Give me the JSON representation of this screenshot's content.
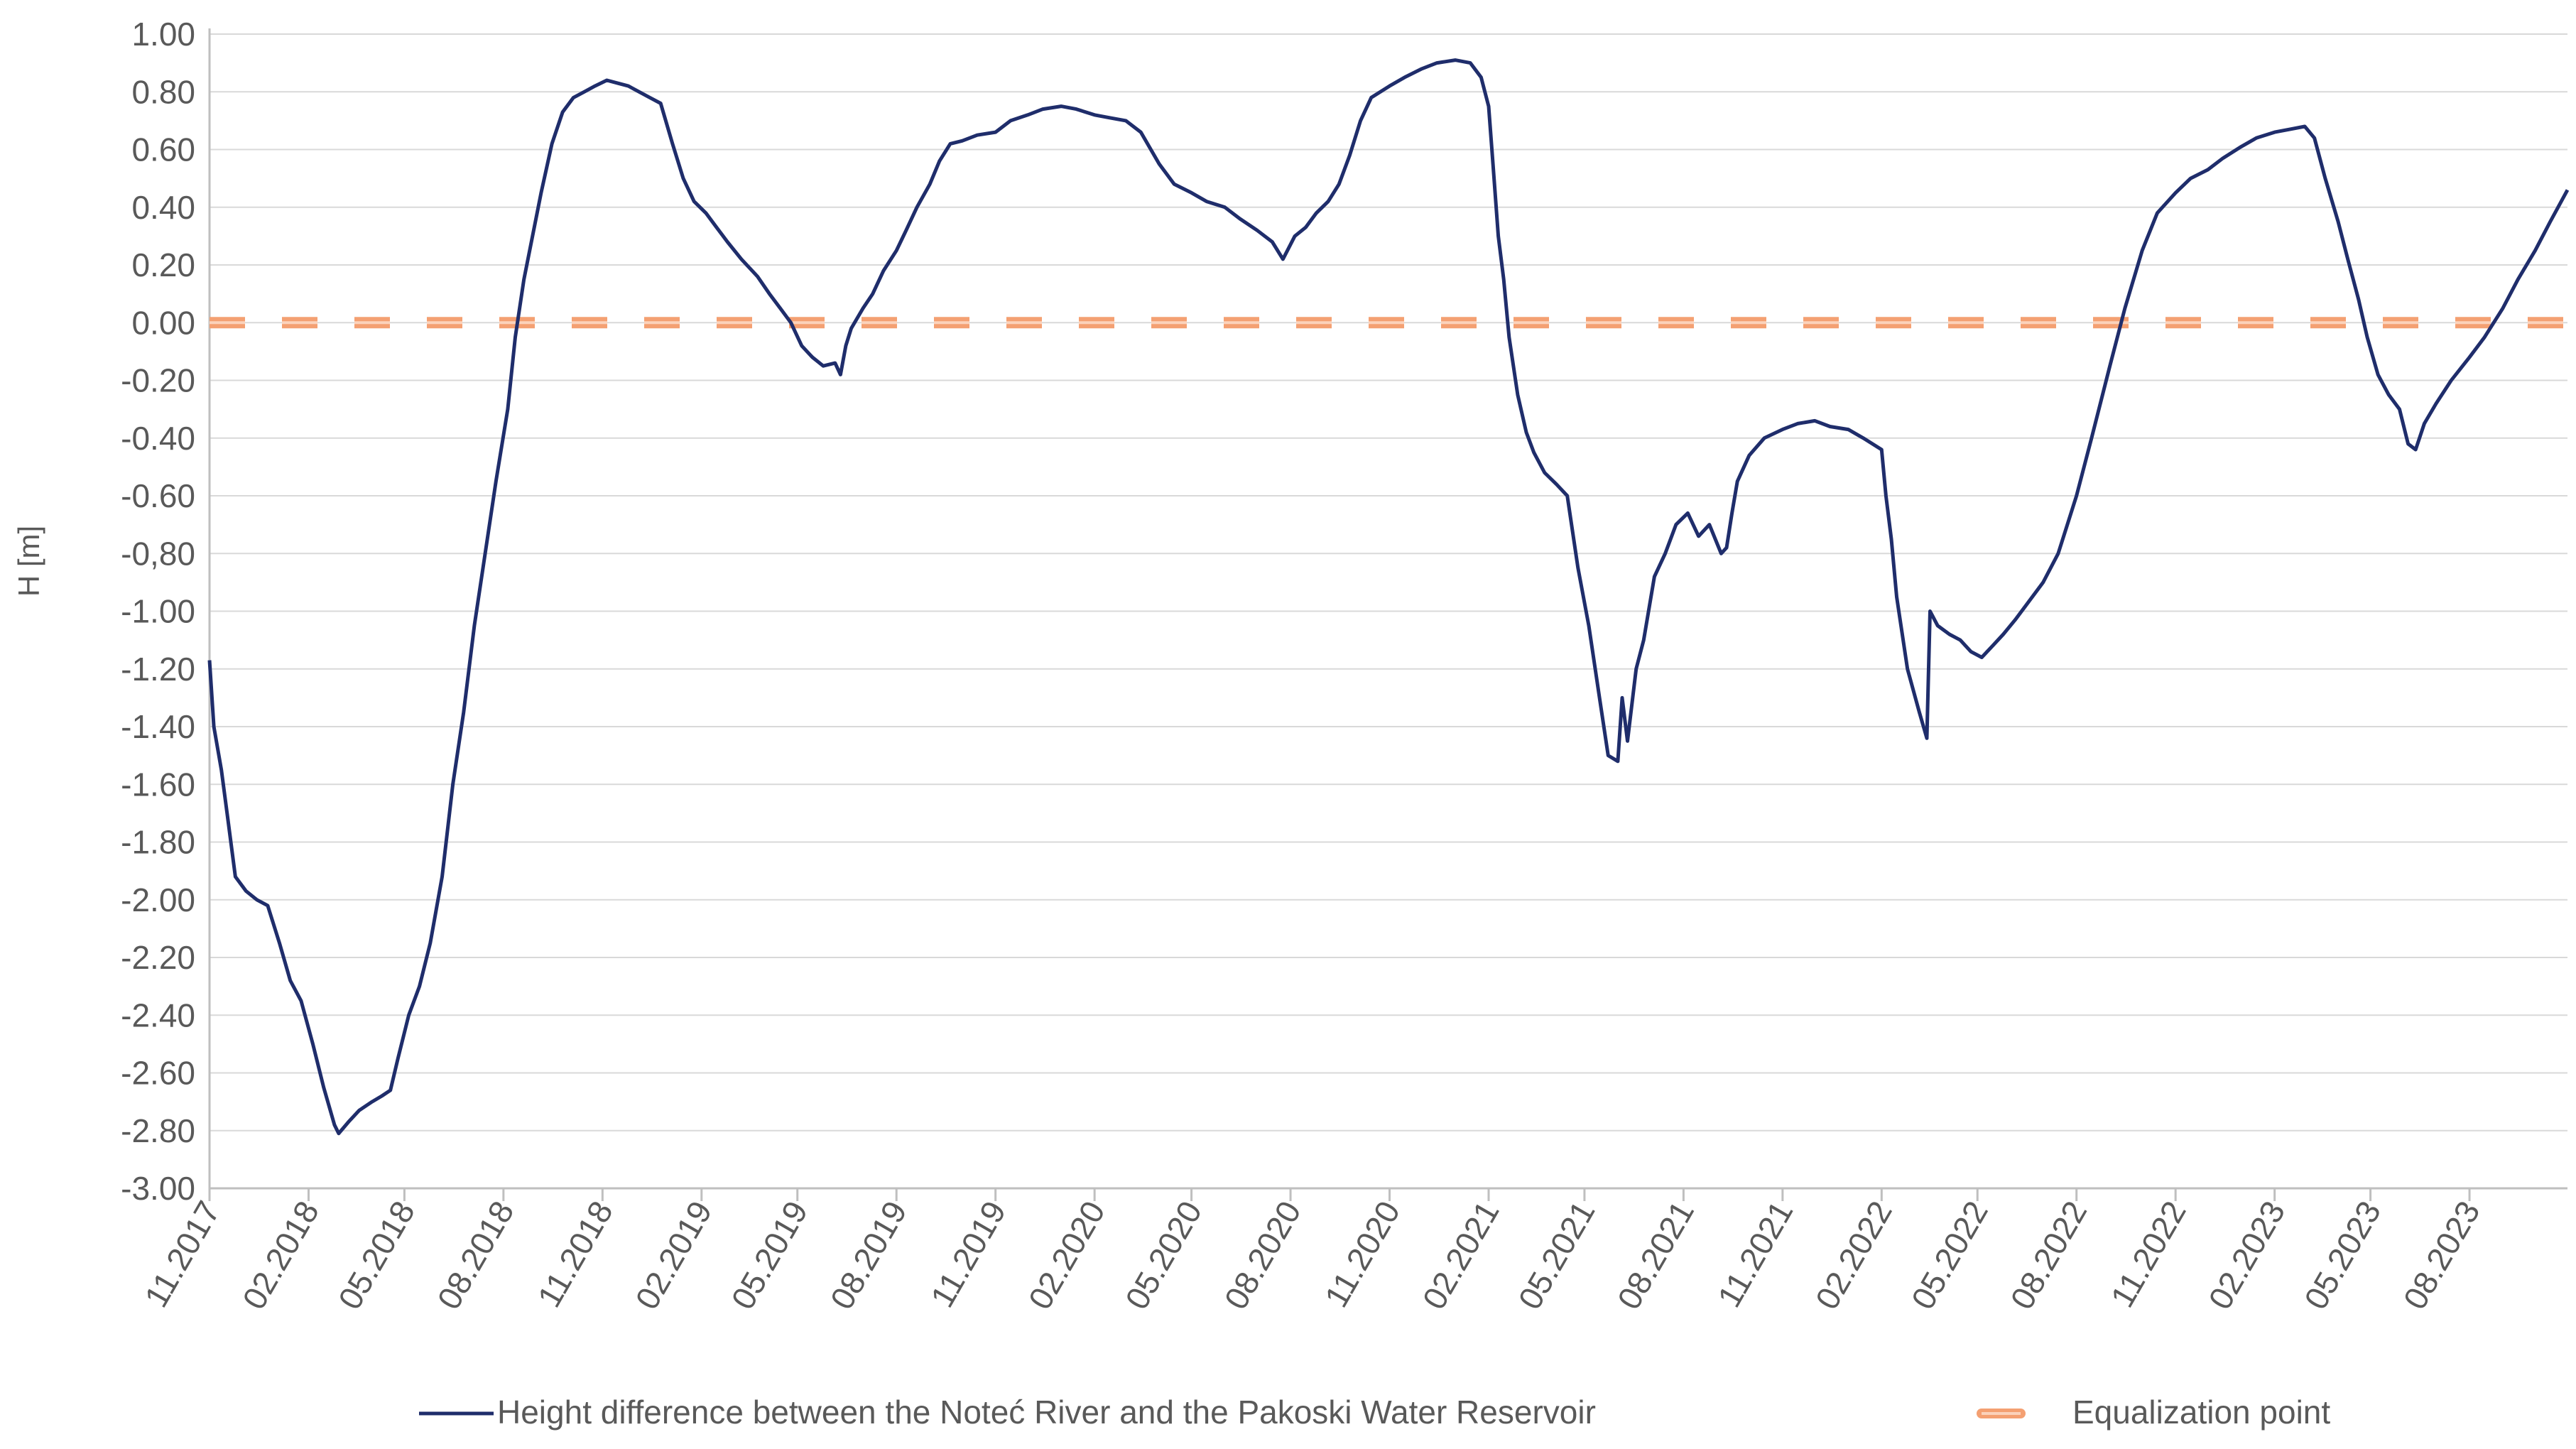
{
  "chart_data": {
    "type": "line",
    "title": "",
    "xlabel": "",
    "ylabel": "H [m]",
    "ylim": [
      -3.0,
      1.0
    ],
    "y_ticks": [
      "1.00",
      "0.80",
      "0.60",
      "0.40",
      "0.20",
      "0.00",
      "-0.20",
      "-0.40",
      "-0.60",
      "-0,80",
      "-1.00",
      "-1.20",
      "-1.40",
      "-1.60",
      "-1.80",
      "-2.00",
      "-2.20",
      "-2.40",
      "-2.60",
      "-2.80",
      "-3.00"
    ],
    "x_ticks": [
      "11.2017",
      "02.2018",
      "05.2018",
      "08.2018",
      "11.2018",
      "02.2019",
      "05.2019",
      "08.2019",
      "11.2019",
      "02.2020",
      "05.2020",
      "08.2020",
      "11.2020",
      "02.2021",
      "05.2021",
      "08.2021",
      "11.2021",
      "02.2022",
      "05.2022",
      "08.2022",
      "11.2022",
      "02.2023",
      "05.2023",
      "08.2023"
    ],
    "grid": true,
    "legend_position": "bottom",
    "series": [
      {
        "name": "Height difference between the Noteć River and the Pakoski Water Reservoir",
        "color": "#1f2d6b",
        "style": "solid",
        "points": [
          [
            "2017-11-01",
            -1.17
          ],
          [
            "2017-11-05",
            -1.4
          ],
          [
            "2017-11-12",
            -1.55
          ],
          [
            "2017-11-18",
            -1.72
          ],
          [
            "2017-11-25",
            -1.92
          ],
          [
            "2017-12-05",
            -1.97
          ],
          [
            "2017-12-15",
            -2.0
          ],
          [
            "2017-12-25",
            -2.02
          ],
          [
            "2018-01-05",
            -2.15
          ],
          [
            "2018-01-15",
            -2.28
          ],
          [
            "2018-01-25",
            -2.35
          ],
          [
            "2018-02-05",
            -2.5
          ],
          [
            "2018-02-15",
            -2.65
          ],
          [
            "2018-02-25",
            -2.78
          ],
          [
            "2018-03-01",
            -2.81
          ],
          [
            "2018-03-10",
            -2.77
          ],
          [
            "2018-03-20",
            -2.73
          ],
          [
            "2018-04-01",
            -2.7
          ],
          [
            "2018-04-10",
            -2.68
          ],
          [
            "2018-04-18",
            -2.66
          ],
          [
            "2018-04-25",
            -2.55
          ],
          [
            "2018-05-05",
            -2.4
          ],
          [
            "2018-05-15",
            -2.3
          ],
          [
            "2018-05-25",
            -2.15
          ],
          [
            "2018-06-05",
            -1.92
          ],
          [
            "2018-06-15",
            -1.6
          ],
          [
            "2018-06-25",
            -1.35
          ],
          [
            "2018-07-05",
            -1.05
          ],
          [
            "2018-07-15",
            -0.8
          ],
          [
            "2018-07-25",
            -0.55
          ],
          [
            "2018-08-05",
            -0.3
          ],
          [
            "2018-08-12",
            -0.05
          ],
          [
            "2018-08-20",
            0.15
          ],
          [
            "2018-08-28",
            0.3
          ],
          [
            "2018-09-05",
            0.45
          ],
          [
            "2018-09-15",
            0.62
          ],
          [
            "2018-09-25",
            0.73
          ],
          [
            "2018-10-05",
            0.78
          ],
          [
            "2018-10-15",
            0.8
          ],
          [
            "2018-10-25",
            0.82
          ],
          [
            "2018-11-05",
            0.84
          ],
          [
            "2018-11-15",
            0.83
          ],
          [
            "2018-11-25",
            0.82
          ],
          [
            "2018-12-05",
            0.8
          ],
          [
            "2018-12-15",
            0.78
          ],
          [
            "2018-12-25",
            0.76
          ],
          [
            "2019-01-05",
            0.62
          ],
          [
            "2019-01-15",
            0.5
          ],
          [
            "2019-01-25",
            0.42
          ],
          [
            "2019-02-05",
            0.38
          ],
          [
            "2019-02-15",
            0.33
          ],
          [
            "2019-02-25",
            0.28
          ],
          [
            "2019-03-10",
            0.22
          ],
          [
            "2019-03-25",
            0.16
          ],
          [
            "2019-04-05",
            0.1
          ],
          [
            "2019-04-15",
            0.05
          ],
          [
            "2019-04-25",
            0.0
          ],
          [
            "2019-05-05",
            -0.08
          ],
          [
            "2019-05-15",
            -0.12
          ],
          [
            "2019-05-25",
            -0.15
          ],
          [
            "2019-06-05",
            -0.14
          ],
          [
            "2019-06-10",
            -0.18
          ],
          [
            "2019-06-15",
            -0.08
          ],
          [
            "2019-06-20",
            -0.02
          ],
          [
            "2019-07-01",
            0.05
          ],
          [
            "2019-07-10",
            0.1
          ],
          [
            "2019-07-20",
            0.18
          ],
          [
            "2019-08-01",
            0.25
          ],
          [
            "2019-08-10",
            0.32
          ],
          [
            "2019-08-20",
            0.4
          ],
          [
            "2019-09-01",
            0.48
          ],
          [
            "2019-09-10",
            0.56
          ],
          [
            "2019-09-20",
            0.62
          ],
          [
            "2019-10-01",
            0.63
          ],
          [
            "2019-10-15",
            0.65
          ],
          [
            "2019-11-01",
            0.66
          ],
          [
            "2019-11-15",
            0.7
          ],
          [
            "2019-12-01",
            0.72
          ],
          [
            "2019-12-15",
            0.74
          ],
          [
            "2020-01-01",
            0.75
          ],
          [
            "2020-01-15",
            0.74
          ],
          [
            "2020-02-01",
            0.72
          ],
          [
            "2020-02-15",
            0.71
          ],
          [
            "2020-03-01",
            0.7
          ],
          [
            "2020-03-15",
            0.66
          ],
          [
            "2020-04-01",
            0.55
          ],
          [
            "2020-04-15",
            0.48
          ],
          [
            "2020-05-01",
            0.45
          ],
          [
            "2020-05-15",
            0.42
          ],
          [
            "2020-06-01",
            0.4
          ],
          [
            "2020-06-15",
            0.36
          ],
          [
            "2020-07-01",
            0.32
          ],
          [
            "2020-07-15",
            0.28
          ],
          [
            "2020-07-25",
            0.22
          ],
          [
            "2020-08-05",
            0.3
          ],
          [
            "2020-08-15",
            0.33
          ],
          [
            "2020-08-25",
            0.38
          ],
          [
            "2020-09-05",
            0.42
          ],
          [
            "2020-09-15",
            0.48
          ],
          [
            "2020-09-25",
            0.58
          ],
          [
            "2020-10-05",
            0.7
          ],
          [
            "2020-10-15",
            0.78
          ],
          [
            "2020-11-01",
            0.82
          ],
          [
            "2020-11-15",
            0.85
          ],
          [
            "2020-12-01",
            0.88
          ],
          [
            "2020-12-15",
            0.9
          ],
          [
            "2021-01-01",
            0.91
          ],
          [
            "2021-01-15",
            0.9
          ],
          [
            "2021-01-25",
            0.85
          ],
          [
            "2021-02-01",
            0.75
          ],
          [
            "2021-02-05",
            0.55
          ],
          [
            "2021-02-10",
            0.3
          ],
          [
            "2021-02-15",
            0.15
          ],
          [
            "2021-02-20",
            -0.05
          ],
          [
            "2021-02-28",
            -0.25
          ],
          [
            "2021-03-08",
            -0.38
          ],
          [
            "2021-03-15",
            -0.45
          ],
          [
            "2021-03-25",
            -0.52
          ],
          [
            "2021-04-05",
            -0.56
          ],
          [
            "2021-04-15",
            -0.6
          ],
          [
            "2021-04-25",
            -0.85
          ],
          [
            "2021-05-05",
            -1.05
          ],
          [
            "2021-05-15",
            -1.3
          ],
          [
            "2021-05-23",
            -1.5
          ],
          [
            "2021-06-01",
            -1.52
          ],
          [
            "2021-06-05",
            -1.3
          ],
          [
            "2021-06-10",
            -1.45
          ],
          [
            "2021-06-18",
            -1.2
          ],
          [
            "2021-06-25",
            -1.1
          ],
          [
            "2021-07-05",
            -0.88
          ],
          [
            "2021-07-15",
            -0.8
          ],
          [
            "2021-07-25",
            -0.7
          ],
          [
            "2021-08-05",
            -0.66
          ],
          [
            "2021-08-15",
            -0.74
          ],
          [
            "2021-08-25",
            -0.7
          ],
          [
            "2021-09-05",
            -0.8
          ],
          [
            "2021-09-10",
            -0.78
          ],
          [
            "2021-09-15",
            -0.66
          ],
          [
            "2021-09-20",
            -0.55
          ],
          [
            "2021-10-01",
            -0.46
          ],
          [
            "2021-10-15",
            -0.4
          ],
          [
            "2021-11-01",
            -0.37
          ],
          [
            "2021-11-15",
            -0.35
          ],
          [
            "2021-12-01",
            -0.34
          ],
          [
            "2021-12-15",
            -0.36
          ],
          [
            "2022-01-01",
            -0.37
          ],
          [
            "2022-01-15",
            -0.4
          ],
          [
            "2022-02-01",
            -0.44
          ],
          [
            "2022-02-05",
            -0.6
          ],
          [
            "2022-02-10",
            -0.75
          ],
          [
            "2022-02-15",
            -0.95
          ],
          [
            "2022-02-25",
            -1.2
          ],
          [
            "2022-03-08",
            -1.35
          ],
          [
            "2022-03-15",
            -1.44
          ],
          [
            "2022-03-18",
            -1.0
          ],
          [
            "2022-03-25",
            -1.05
          ],
          [
            "2022-04-05",
            -1.08
          ],
          [
            "2022-04-15",
            -1.1
          ],
          [
            "2022-04-25",
            -1.14
          ],
          [
            "2022-05-05",
            -1.16
          ],
          [
            "2022-05-15",
            -1.12
          ],
          [
            "2022-05-25",
            -1.08
          ],
          [
            "2022-06-05",
            -1.03
          ],
          [
            "2022-06-15",
            -0.98
          ],
          [
            "2022-07-01",
            -0.9
          ],
          [
            "2022-07-15",
            -0.8
          ],
          [
            "2022-08-01",
            -0.6
          ],
          [
            "2022-08-15",
            -0.4
          ],
          [
            "2022-09-01",
            -0.15
          ],
          [
            "2022-09-15",
            0.05
          ],
          [
            "2022-10-01",
            0.25
          ],
          [
            "2022-10-15",
            0.38
          ],
          [
            "2022-11-01",
            0.45
          ],
          [
            "2022-11-15",
            0.5
          ],
          [
            "2022-12-01",
            0.53
          ],
          [
            "2022-12-15",
            0.57
          ],
          [
            "2023-01-01",
            0.61
          ],
          [
            "2023-01-15",
            0.64
          ],
          [
            "2023-02-01",
            0.66
          ],
          [
            "2023-02-15",
            0.67
          ],
          [
            "2023-03-01",
            0.68
          ],
          [
            "2023-03-10",
            0.64
          ],
          [
            "2023-03-20",
            0.5
          ],
          [
            "2023-04-01",
            0.35
          ],
          [
            "2023-04-10",
            0.22
          ],
          [
            "2023-04-20",
            0.08
          ],
          [
            "2023-04-28",
            -0.05
          ],
          [
            "2023-05-08",
            -0.18
          ],
          [
            "2023-05-18",
            -0.25
          ],
          [
            "2023-05-28",
            -0.3
          ],
          [
            "2023-06-05",
            -0.42
          ],
          [
            "2023-06-12",
            -0.44
          ],
          [
            "2023-06-20",
            -0.35
          ],
          [
            "2023-07-01",
            -0.28
          ],
          [
            "2023-07-15",
            -0.2
          ],
          [
            "2023-08-01",
            -0.12
          ],
          [
            "2023-08-15",
            -0.05
          ],
          [
            "2023-09-01",
            0.05
          ],
          [
            "2023-09-15",
            0.15
          ],
          [
            "2023-10-01",
            0.25
          ],
          [
            "2023-10-15",
            0.35
          ],
          [
            "2023-10-31",
            0.46
          ]
        ]
      },
      {
        "name": "Equalization point",
        "color": "#f4a072",
        "style": "dashed",
        "points": [
          [
            "2017-11-01",
            0.0
          ],
          [
            "2023-10-31",
            0.0
          ]
        ]
      }
    ]
  }
}
